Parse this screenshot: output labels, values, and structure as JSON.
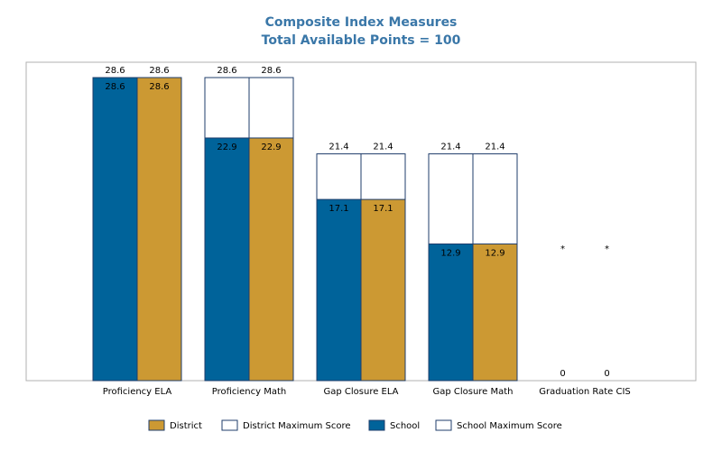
{
  "chart_data": {
    "type": "bar",
    "title": "Composite Index Measures",
    "subtitle": "Total Available Points = 100",
    "categories": [
      "Proficiency ELA",
      "Proficiency Math",
      "Gap Closure ELA",
      "Gap Closure Math",
      "Graduation Rate CIS"
    ],
    "series": [
      {
        "name": "School",
        "color": "#00639a",
        "values": [
          28.6,
          22.9,
          17.1,
          12.9,
          0
        ],
        "labels": [
          "28.6",
          "22.9",
          "17.1",
          "12.9",
          "0"
        ]
      },
      {
        "name": "District",
        "color": "#cc9933",
        "values": [
          28.6,
          22.9,
          17.1,
          12.9,
          0
        ],
        "labels": [
          "28.6",
          "22.9",
          "17.1",
          "12.9",
          "0"
        ]
      }
    ],
    "max_series": [
      {
        "name": "School Maximum Score",
        "values": [
          28.6,
          28.6,
          21.4,
          21.4,
          null
        ],
        "labels": [
          "28.6",
          "28.6",
          "21.4",
          "21.4",
          "*"
        ]
      },
      {
        "name": "District Maximum Score",
        "values": [
          28.6,
          28.6,
          21.4,
          21.4,
          null
        ],
        "labels": [
          "28.6",
          "28.6",
          "21.4",
          "21.4",
          "*"
        ]
      }
    ],
    "legend": [
      "District",
      "District Maximum Score",
      "School",
      "School Maximum Score"
    ],
    "legend_position": "bottom",
    "ylim": [
      0,
      30
    ],
    "grid": false
  }
}
